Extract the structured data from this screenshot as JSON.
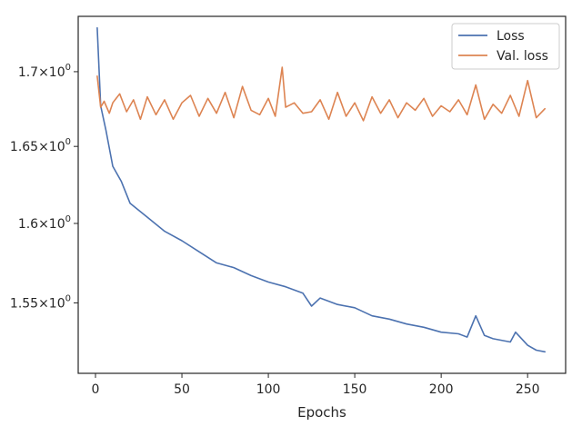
{
  "chart_data": {
    "type": "line",
    "title": "",
    "xlabel": "Epochs",
    "ylabel": "",
    "xlim": [
      -10,
      272
    ],
    "ylim": [
      1.507,
      1.738
    ],
    "yscale": "log",
    "grid": false,
    "legend_position": "top-right",
    "x_ticks": [
      {
        "value": 0,
        "label": "0"
      },
      {
        "value": 50,
        "label": "50"
      },
      {
        "value": 100,
        "label": "100"
      },
      {
        "value": 150,
        "label": "150"
      },
      {
        "value": 200,
        "label": "200"
      },
      {
        "value": 250,
        "label": "250"
      }
    ],
    "y_ticks": [
      {
        "value": 1.55,
        "label": "1.55×10",
        "exp": "0"
      },
      {
        "value": 1.6,
        "label": "1.6×10",
        "exp": "0"
      },
      {
        "value": 1.65,
        "label": "1.65×10",
        "exp": "0"
      },
      {
        "value": 1.7,
        "label": "1.7×10",
        "exp": "0"
      }
    ],
    "series": [
      {
        "name": "Loss",
        "color": "#4c72b0",
        "x": [
          1,
          3,
          6,
          10,
          15,
          20,
          30,
          40,
          50,
          60,
          70,
          80,
          90,
          100,
          110,
          120,
          125,
          130,
          140,
          150,
          160,
          170,
          180,
          190,
          200,
          210,
          215,
          220,
          225,
          230,
          240,
          243,
          250,
          255,
          260
        ],
        "y": [
          1.73,
          1.677,
          1.661,
          1.637,
          1.627,
          1.613,
          1.604,
          1.595,
          1.589,
          1.582,
          1.575,
          1.572,
          1.567,
          1.563,
          1.56,
          1.556,
          1.548,
          1.553,
          1.549,
          1.547,
          1.542,
          1.54,
          1.537,
          1.535,
          1.532,
          1.531,
          1.529,
          1.542,
          1.53,
          1.528,
          1.526,
          1.532,
          1.524,
          1.521,
          1.52
        ]
      },
      {
        "name": "Val. loss",
        "color": "#dd8452",
        "x": [
          1,
          3,
          5,
          8,
          10,
          14,
          18,
          22,
          26,
          30,
          35,
          40,
          45,
          50,
          55,
          60,
          65,
          70,
          75,
          80,
          85,
          90,
          95,
          100,
          104,
          108,
          110,
          115,
          120,
          125,
          130,
          135,
          140,
          145,
          150,
          155,
          160,
          165,
          170,
          175,
          180,
          185,
          190,
          195,
          200,
          205,
          210,
          215,
          220,
          225,
          230,
          235,
          240,
          245,
          250,
          255,
          260
        ],
        "y": [
          1.697,
          1.676,
          1.68,
          1.672,
          1.679,
          1.685,
          1.673,
          1.681,
          1.668,
          1.683,
          1.671,
          1.681,
          1.668,
          1.679,
          1.684,
          1.67,
          1.682,
          1.672,
          1.686,
          1.669,
          1.69,
          1.674,
          1.671,
          1.682,
          1.67,
          1.703,
          1.676,
          1.679,
          1.672,
          1.673,
          1.681,
          1.668,
          1.686,
          1.67,
          1.679,
          1.667,
          1.683,
          1.672,
          1.681,
          1.669,
          1.679,
          1.674,
          1.682,
          1.67,
          1.677,
          1.673,
          1.681,
          1.671,
          1.691,
          1.668,
          1.678,
          1.672,
          1.684,
          1.67,
          1.694,
          1.669,
          1.675
        ]
      }
    ]
  }
}
